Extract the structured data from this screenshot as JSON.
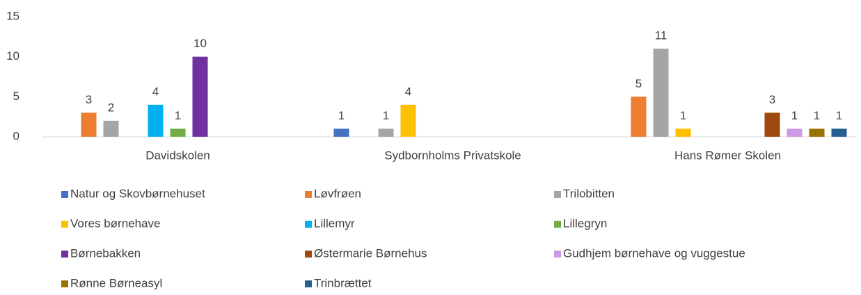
{
  "chart_data": {
    "type": "bar",
    "categories": [
      "Davidskolen",
      "Sydbornholms Privatskole",
      "Hans Rømer Skolen"
    ],
    "series": [
      {
        "name": "Natur og Skovbørnehuset",
        "color": "#4472c4",
        "values": [
          null,
          1,
          null
        ]
      },
      {
        "name": "Løvfrøen",
        "color": "#ed7d31",
        "values": [
          3,
          null,
          5
        ]
      },
      {
        "name": "Trilobitten",
        "color": "#a5a5a5",
        "values": [
          2,
          1,
          11
        ]
      },
      {
        "name": "Vores børnehave",
        "color": "#ffc000",
        "values": [
          null,
          4,
          1
        ]
      },
      {
        "name": "Lillemyr",
        "color": "#00b0f0",
        "values": [
          4,
          null,
          null
        ]
      },
      {
        "name": "Lillegryn",
        "color": "#70ad47",
        "values": [
          1,
          null,
          null
        ]
      },
      {
        "name": "Børnebakken",
        "color": "#7030a0",
        "values": [
          10,
          null,
          null
        ]
      },
      {
        "name": "Østermarie Børnehus",
        "color": "#9e480e",
        "values": [
          null,
          null,
          3
        ]
      },
      {
        "name": "Gudhjem børnehave og vuggestue",
        "color": "#cc99e6",
        "values": [
          null,
          null,
          1
        ]
      },
      {
        "name": "Rønne Børneasyl",
        "color": "#997300",
        "values": [
          null,
          null,
          1
        ]
      },
      {
        "name": "Trinbrættet",
        "color": "#255e91",
        "values": [
          null,
          null,
          1
        ]
      }
    ],
    "ylim": [
      0,
      15
    ],
    "yticks": [
      0,
      5,
      10,
      15
    ],
    "grid": false,
    "legend": "bottom"
  }
}
